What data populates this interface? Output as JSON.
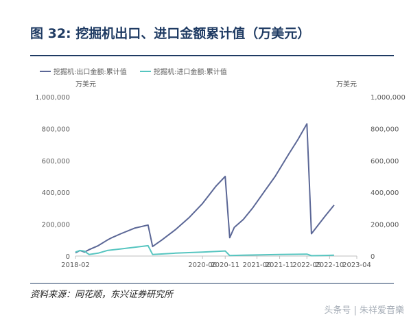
{
  "header": {
    "title": "图 32: 挖掘机出口、进口金额累计值（万美元）"
  },
  "footer": {
    "source": "资料来源：同花顺，东兴证券研究所",
    "watermark": "头条号 | 朱祥爱音樂"
  },
  "colors": {
    "title": "#1f3b63",
    "export_series": "#5b6796",
    "import_series": "#56c5c0",
    "axis_text": "#595959"
  },
  "chart_data": {
    "type": "line",
    "left_axis_unit": "万美元",
    "right_axis_unit": "万美元",
    "ylim": [
      0,
      1000000
    ],
    "yticks": [
      "0",
      "200,000",
      "400,000",
      "600,000",
      "800,000",
      "1,000,000"
    ],
    "xticks": [
      "2018-02",
      "2020-06",
      "2020-11",
      "2021-06",
      "2021-11",
      "2022-05",
      "2022-10",
      "2023-04"
    ],
    "grid": false,
    "legend_position": "top-left",
    "series": [
      {
        "name": "挖掘机:出口金额:累计值",
        "points": [
          [
            "2018-02",
            20000
          ],
          [
            "2018-03",
            35000
          ],
          [
            "2018-04",
            25000
          ],
          [
            "2018-05",
            40000
          ],
          [
            "2018-07",
            65000
          ],
          [
            "2018-09",
            100000
          ],
          [
            "2018-10",
            115000
          ],
          [
            "2018-12",
            140000
          ],
          [
            "2019-03",
            175000
          ],
          [
            "2019-06",
            195000
          ],
          [
            "2019-07",
            60000
          ],
          [
            "2019-09",
            100000
          ],
          [
            "2019-12",
            165000
          ],
          [
            "2020-03",
            240000
          ],
          [
            "2020-06",
            330000
          ],
          [
            "2020-09",
            440000
          ],
          [
            "2020-11",
            500000
          ],
          [
            "2020-12",
            115000
          ],
          [
            "2021-01",
            180000
          ],
          [
            "2021-03",
            230000
          ],
          [
            "2021-05",
            300000
          ],
          [
            "2021-08",
            420000
          ],
          [
            "2021-10",
            500000
          ],
          [
            "2022-01",
            640000
          ],
          [
            "2022-03",
            730000
          ],
          [
            "2022-05",
            830000
          ],
          [
            "2022-06",
            140000
          ],
          [
            "2022-09",
            250000
          ],
          [
            "2022-11",
            320000
          ]
        ]
      },
      {
        "name": "挖掘机:进口金额:累计值",
        "points": [
          [
            "2018-02",
            25000
          ],
          [
            "2018-03",
            35000
          ],
          [
            "2018-04",
            30000
          ],
          [
            "2018-05",
            10000
          ],
          [
            "2018-07",
            18000
          ],
          [
            "2018-09",
            35000
          ],
          [
            "2018-12",
            45000
          ],
          [
            "2019-03",
            55000
          ],
          [
            "2019-06",
            65000
          ],
          [
            "2019-07",
            10000
          ],
          [
            "2019-09",
            13000
          ],
          [
            "2019-12",
            18000
          ],
          [
            "2020-06",
            25000
          ],
          [
            "2020-11",
            32000
          ],
          [
            "2020-12",
            3000
          ],
          [
            "2021-03",
            5000
          ],
          [
            "2021-06",
            7000
          ],
          [
            "2021-11",
            10000
          ],
          [
            "2022-05",
            12000
          ],
          [
            "2022-06",
            2000
          ],
          [
            "2022-09",
            4000
          ],
          [
            "2022-11",
            5000
          ]
        ]
      }
    ]
  }
}
